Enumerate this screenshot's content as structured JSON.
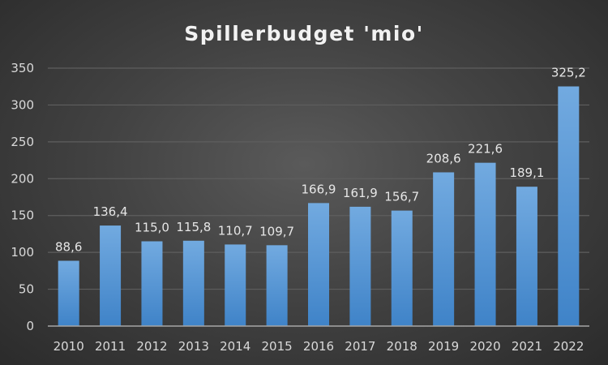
{
  "chart_data": {
    "type": "bar",
    "title": "Spillerbudget 'mio'",
    "xlabel": "",
    "ylabel": "",
    "ylim": [
      0,
      350
    ],
    "yticks": [
      0,
      50,
      100,
      150,
      200,
      250,
      300,
      350
    ],
    "grid": true,
    "legend": "none",
    "categories": [
      "2010",
      "2011",
      "2012",
      "2013",
      "2014",
      "2015",
      "2016",
      "2017",
      "2018",
      "2019",
      "2020",
      "2021",
      "2022"
    ],
    "values": [
      88.6,
      136.4,
      115.0,
      115.8,
      110.7,
      109.7,
      166.9,
      161.9,
      156.7,
      208.6,
      221.6,
      189.1,
      325.2
    ],
    "data_labels": [
      "88,6",
      "136,4",
      "115,0",
      "115,8",
      "110,7",
      "109,7",
      "166,9",
      "161,9",
      "156,7",
      "208,6",
      "221,6",
      "189,1",
      "325,2"
    ],
    "colors": {
      "bar_top": "#72aae0",
      "bar_bottom": "#3f83c8",
      "grid": "#5e5e5e",
      "axis": "#a6a6a6"
    }
  }
}
